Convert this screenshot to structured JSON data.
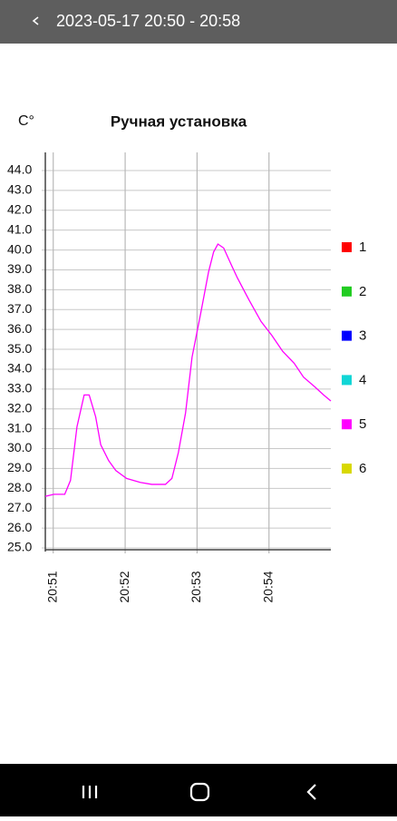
{
  "header": {
    "title": "2023-05-17 20:50 - 20:58"
  },
  "chart_data": {
    "type": "line",
    "title": "Ручная установка",
    "y_label": "C°",
    "xlim": [
      50.89,
      54.86
    ],
    "xticks": [
      {
        "value": 51,
        "label": "20:51"
      },
      {
        "value": 52,
        "label": "20:52"
      },
      {
        "value": 53,
        "label": "20:53"
      },
      {
        "value": 54,
        "label": "20:54"
      }
    ],
    "ylim": [
      25,
      44
    ],
    "yticks": [
      {
        "value": 25,
        "label": "25.0"
      },
      {
        "value": 26,
        "label": "26.0"
      },
      {
        "value": 27,
        "label": "27.0"
      },
      {
        "value": 28,
        "label": "28.0"
      },
      {
        "value": 29,
        "label": "29.0"
      },
      {
        "value": 30,
        "label": "30.0"
      },
      {
        "value": 31,
        "label": "31.0"
      },
      {
        "value": 32,
        "label": "32.0"
      },
      {
        "value": 33,
        "label": "33.0"
      },
      {
        "value": 34,
        "label": "34.0"
      },
      {
        "value": 35,
        "label": "35.0"
      },
      {
        "value": 36,
        "label": "36.0"
      },
      {
        "value": 37,
        "label": "37.0"
      },
      {
        "value": 38,
        "label": "38.0"
      },
      {
        "value": 39,
        "label": "39.0"
      },
      {
        "value": 40,
        "label": "40.0"
      },
      {
        "value": 41,
        "label": "41.0"
      },
      {
        "value": 42,
        "label": "42.0"
      },
      {
        "value": 43,
        "label": "43.0"
      },
      {
        "value": 44,
        "label": "44.0"
      }
    ],
    "grid": true,
    "series": [
      {
        "name": "1",
        "color": "#ff0000",
        "x": [],
        "values": []
      },
      {
        "name": "2",
        "color": "#22cc22",
        "x": [],
        "values": []
      },
      {
        "name": "3",
        "color": "#0000ff",
        "x": [],
        "values": []
      },
      {
        "name": "4",
        "color": "#11d6d6",
        "x": [],
        "values": []
      },
      {
        "name": "5",
        "color": "#ff00ff",
        "x": [
          50.89,
          51.01,
          51.16,
          51.24,
          51.33,
          51.43,
          51.5,
          51.59,
          51.66,
          51.77,
          51.87,
          52.02,
          52.21,
          52.37,
          52.56,
          52.65,
          52.74,
          52.84,
          52.93,
          53.05,
          53.16,
          53.23,
          53.29,
          53.37,
          53.47,
          53.56,
          53.72,
          53.89,
          54.04,
          54.19,
          54.35,
          54.48,
          54.64,
          54.76,
          54.86
        ],
        "values": [
          27.6,
          27.7,
          27.7,
          28.4,
          31.1,
          32.7,
          32.7,
          31.6,
          30.2,
          29.4,
          28.9,
          28.5,
          28.3,
          28.2,
          28.2,
          28.5,
          29.8,
          31.8,
          34.6,
          36.8,
          38.9,
          39.9,
          40.3,
          40.1,
          39.3,
          38.6,
          37.5,
          36.4,
          35.7,
          34.9,
          34.3,
          33.6,
          33.1,
          32.7,
          32.4
        ]
      },
      {
        "name": "6",
        "color": "#d8d800",
        "x": [],
        "values": []
      }
    ]
  }
}
